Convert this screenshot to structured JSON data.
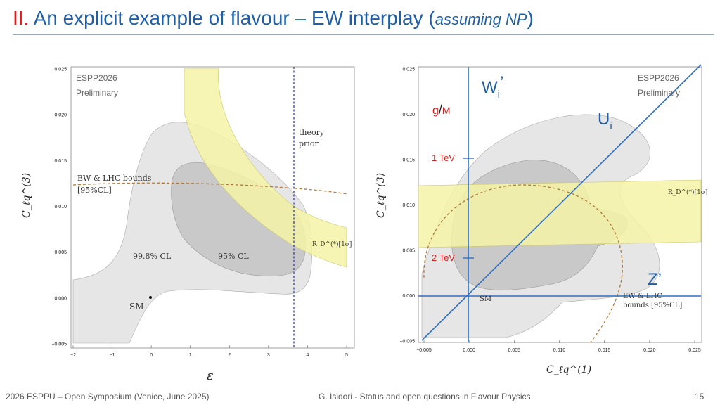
{
  "slide": {
    "title_number": "II.",
    "title_main": " An explicit example of flavour –  EW interplay (",
    "title_italic": "assuming NP",
    "title_close": ")"
  },
  "left_plot": {
    "watermark_line1": "ESPP2026",
    "watermark_line2": "Preliminary",
    "label_theory_1": "theory",
    "label_theory_2": "prior",
    "label_ew_1": "EW & LHC bounds",
    "label_ew_2": "[95%CL]",
    "label_rd": "R_D^(*)[1σ]",
    "label_998": "99.8% CL",
    "label_95": "95% CL",
    "label_sm": "SM",
    "ylabel": "C_ℓq^(3)",
    "xlabel": "ε",
    "xticks": [
      "−2",
      "−1",
      "0",
      "1",
      "2",
      "3",
      "4",
      "5"
    ],
    "yticks": [
      "0.025",
      "0.020",
      "0.015",
      "0.010",
      "0.005",
      "0.000",
      "−0.005"
    ]
  },
  "right_plot": {
    "watermark_line1": "ESPP2026",
    "watermark_line2": "Preliminary",
    "label_w": "W",
    "label_w_sub": "i",
    "label_w_prime": "’",
    "label_u": "U",
    "label_u_sub": "i",
    "label_z": "Z’",
    "label_gm_g": "g",
    "label_gm_slash": "/",
    "label_gm_m": "M",
    "label_1tev": "1 TeV",
    "label_2tev": "2 TeV",
    "label_rd": "R_D^(*)[1σ]",
    "label_ew_1": "EW & LHC",
    "label_ew_2": "bounds [95%CL]",
    "label_sm": "SM",
    "ylabel": "C_ℓq^(3)",
    "xlabel": "C_ℓq^(1)",
    "xticks": [
      "−0.005",
      "0.000",
      "0.005",
      "0.010",
      "0.015",
      "0.020",
      "0.025"
    ],
    "yticks": [
      "0.025",
      "0.020",
      "0.015",
      "0.010",
      "0.005",
      "0.000",
      "−0.005"
    ]
  },
  "footer": {
    "left": "2026 ESPPU – Open Symposium (Venice, June 2025)",
    "center": "G. Isidori - Status and open questions in Flavour Physics",
    "page": "15"
  },
  "colors": {
    "title_blue": "#1f5fa8",
    "title_red": "#d42020",
    "band_yellow": "#f4f3a6",
    "region_light": "#e6e6e6",
    "region_dark": "#c9c9c9",
    "line_blue": "#2d6fc4",
    "dashed_brown": "#b07a3a"
  }
}
